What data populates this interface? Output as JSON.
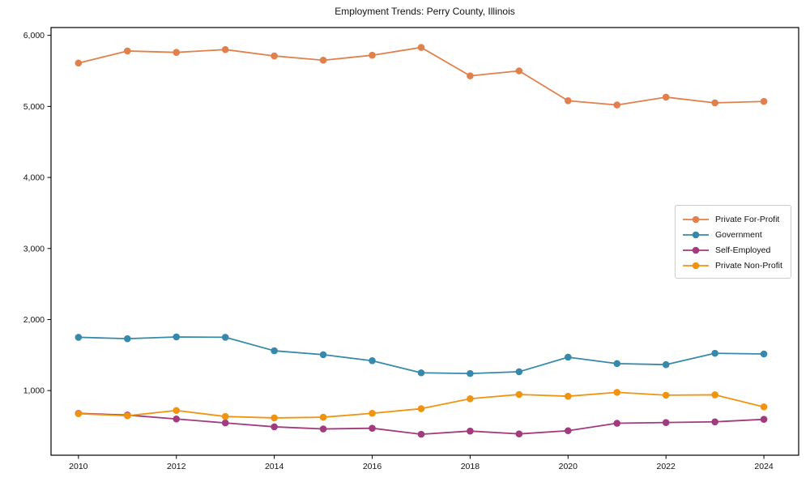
{
  "chart_data": {
    "type": "line",
    "title": "Employment Trends: Perry County, Illinois",
    "xlabel": "",
    "ylabel": "",
    "x": [
      2010,
      2011,
      2012,
      2013,
      2014,
      2015,
      2016,
      2017,
      2018,
      2019,
      2020,
      2021,
      2022,
      2023,
      2024
    ],
    "series": [
      {
        "name": "Private For-Profit",
        "color": "#e0804c",
        "values": [
          5610,
          5780,
          5760,
          5800,
          5710,
          5650,
          5720,
          5830,
          5430,
          5500,
          5080,
          5020,
          5130,
          5050,
          5070
        ]
      },
      {
        "name": "Government",
        "color": "#3789ab",
        "values": [
          1750,
          1730,
          1755,
          1750,
          1560,
          1505,
          1420,
          1250,
          1240,
          1265,
          1470,
          1380,
          1365,
          1525,
          1515
        ]
      },
      {
        "name": "Self-Employed",
        "color": "#a23a7e",
        "values": [
          680,
          655,
          600,
          545,
          490,
          460,
          470,
          385,
          430,
          390,
          435,
          540,
          550,
          560,
          595
        ]
      },
      {
        "name": "Private Non-Profit",
        "color": "#f0940f",
        "values": [
          675,
          645,
          720,
          635,
          615,
          625,
          680,
          745,
          885,
          945,
          920,
          975,
          935,
          940,
          770
        ]
      }
    ],
    "xticks": [
      2010,
      2012,
      2014,
      2016,
      2018,
      2020,
      2022,
      2024
    ],
    "yticks": [
      1000,
      2000,
      3000,
      4000,
      5000,
      6000
    ],
    "ytick_labels": [
      "1,000",
      "2,000",
      "3,000",
      "4,000",
      "5,000",
      "6,000"
    ],
    "xlim": [
      2009.44,
      2024.71
    ],
    "ylim": [
      90,
      6110
    ],
    "grid": false,
    "legend_position": "center-right",
    "frame_color": "#000000",
    "text_color": "#111111"
  }
}
